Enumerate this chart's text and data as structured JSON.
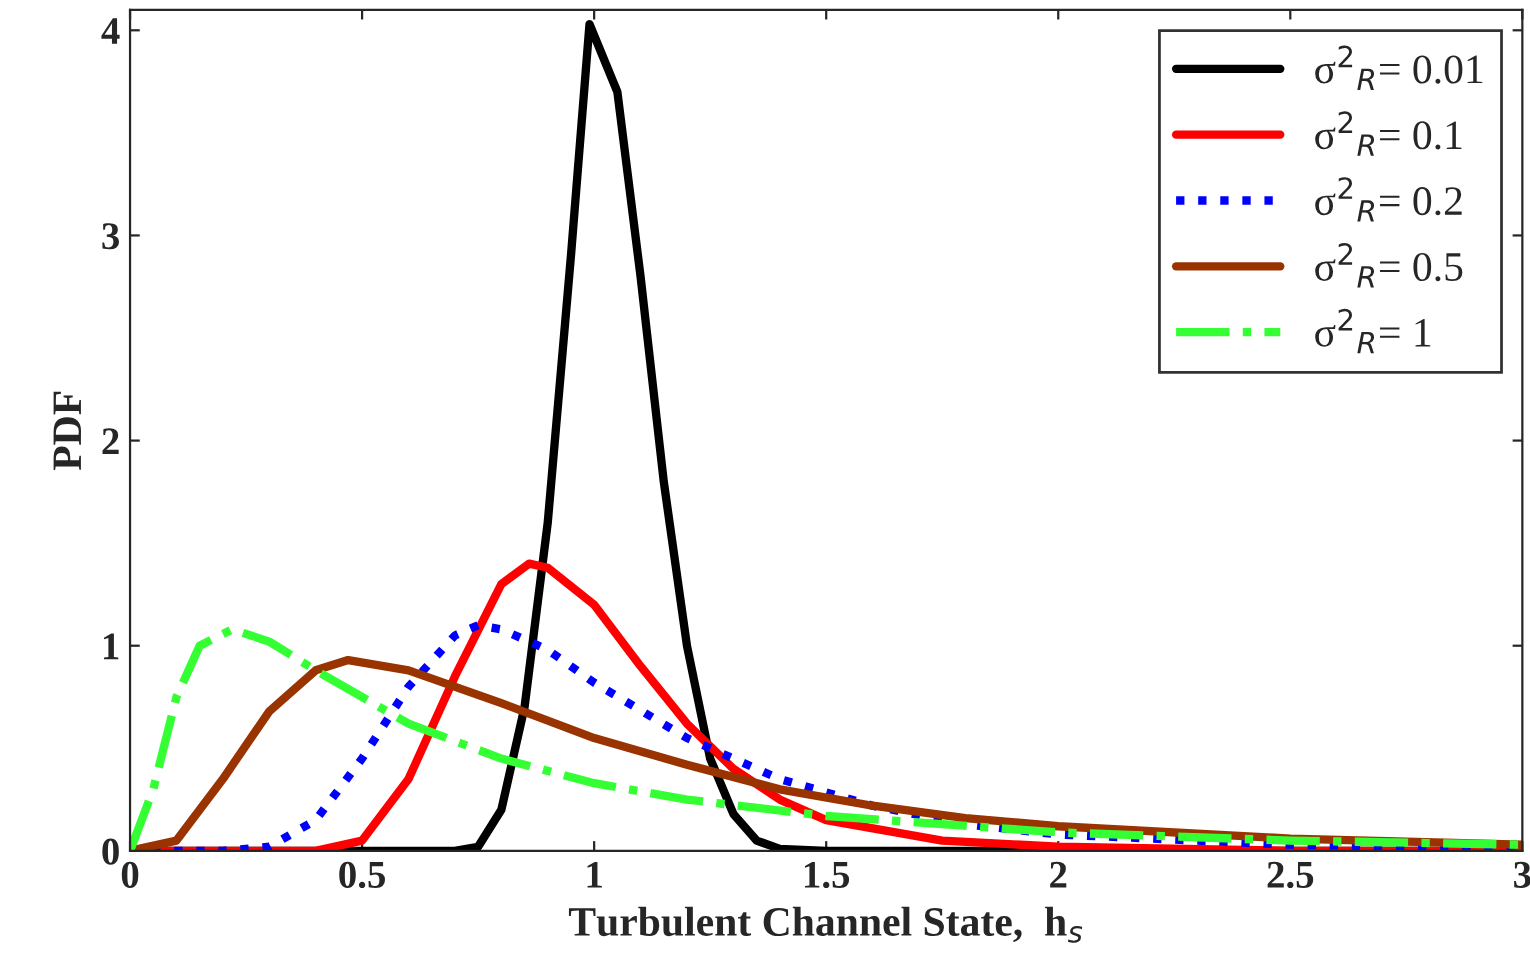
{
  "chart_data": {
    "type": "line",
    "xlabel": "Turbulent Channel State,  h$_{s}$",
    "ylabel": "PDF",
    "xlim": [
      0,
      3
    ],
    "ylim": [
      0,
      4.1
    ],
    "xticks": [
      0,
      0.5,
      1,
      1.5,
      2,
      2.5,
      3
    ],
    "yticks": [
      0,
      1,
      2,
      3,
      4
    ],
    "grid": false,
    "legend": "top right",
    "marker": "none",
    "series": [
      {
        "name": "σ$^{2}$$_{R}$= 0.01",
        "color": "#000000",
        "line_style": "solid",
        "x": [
          0,
          0.7,
          0.75,
          0.8,
          0.85,
          0.9,
          0.95,
          0.99,
          1.05,
          1.1,
          1.15,
          1.2,
          1.25,
          1.3,
          1.35,
          1.4,
          1.5,
          3
        ],
        "values": [
          0,
          0,
          0.02,
          0.2,
          0.7,
          1.6,
          2.9,
          4.03,
          3.7,
          2.8,
          1.8,
          1.0,
          0.45,
          0.18,
          0.05,
          0.01,
          0,
          0
        ]
      },
      {
        "name": "σ$^{2}$$_{R}$= 0.1",
        "color": "#ff0000",
        "line_style": "solid",
        "x": [
          0,
          0.4,
          0.5,
          0.6,
          0.7,
          0.8,
          0.86,
          0.9,
          1.0,
          1.1,
          1.2,
          1.3,
          1.4,
          1.5,
          1.75,
          2,
          2.5,
          3
        ],
        "values": [
          0,
          0,
          0.05,
          0.35,
          0.85,
          1.3,
          1.4,
          1.38,
          1.2,
          0.9,
          0.62,
          0.4,
          0.25,
          0.15,
          0.05,
          0.02,
          0,
          0
        ]
      },
      {
        "name": "σ$^{2}$$_{R}$= 0.2",
        "color": "#0000ff",
        "line_style": "dotted",
        "x": [
          0,
          0.2,
          0.3,
          0.4,
          0.5,
          0.6,
          0.7,
          0.75,
          0.8,
          0.9,
          1.0,
          1.2,
          1.4,
          1.6,
          1.8,
          2,
          2.5,
          3
        ],
        "values": [
          0,
          0,
          0.02,
          0.15,
          0.45,
          0.8,
          1.05,
          1.1,
          1.08,
          0.98,
          0.82,
          0.55,
          0.35,
          0.22,
          0.13,
          0.08,
          0.03,
          0.01
        ]
      },
      {
        "name": "σ$^{2}$$_{R}$= 0.5",
        "color": "#993300",
        "line_style": "solid",
        "x": [
          0,
          0.1,
          0.2,
          0.3,
          0.4,
          0.47,
          0.6,
          0.8,
          1.0,
          1.2,
          1.4,
          1.6,
          1.8,
          2,
          2.5,
          3
        ],
        "values": [
          0,
          0.05,
          0.35,
          0.68,
          0.88,
          0.93,
          0.88,
          0.72,
          0.55,
          0.42,
          0.3,
          0.22,
          0.16,
          0.12,
          0.06,
          0.03
        ]
      },
      {
        "name": "σ$^{2}$$_{R}$= 1",
        "color": "#33ff33",
        "line_style": "dashed",
        "x": [
          0,
          0.05,
          0.1,
          0.15,
          0.22,
          0.3,
          0.4,
          0.6,
          0.8,
          1.0,
          1.2,
          1.5,
          2,
          2.5,
          3
        ],
        "values": [
          0,
          0.3,
          0.75,
          1.0,
          1.08,
          1.02,
          0.88,
          0.62,
          0.45,
          0.33,
          0.25,
          0.17,
          0.09,
          0.05,
          0.03
        ]
      }
    ]
  }
}
